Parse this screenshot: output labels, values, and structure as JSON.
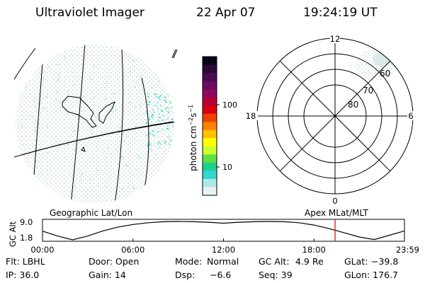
{
  "header": {
    "instrument": "Ultraviolet Imager",
    "date": "22 Apr 07",
    "time": "19:24:19 UT"
  },
  "colorbar": {
    "unit_label": "photon cm",
    "unit_sup1": "−2",
    "unit_mid": "s",
    "unit_sup2": "−1",
    "ticks": [
      "100",
      "10"
    ],
    "colors": [
      "#0a0418",
      "#2a0838",
      "#4a0a50",
      "#6a0a60",
      "#8a0a60",
      "#b80030",
      "#d80010",
      "#f04000",
      "#ff8000",
      "#ffc000",
      "#ffff00",
      "#c8ff30",
      "#60e040",
      "#20d090",
      "#30d8d0",
      "#b0e8e8",
      "#e8f4f4"
    ]
  },
  "geo_panel": {
    "label": "Geographic Lat/Lon"
  },
  "polar_panel": {
    "label": "Apex  MLat/MLT",
    "mlt_labels": [
      "12",
      "18",
      "6",
      "0"
    ],
    "mlat_labels": [
      "60",
      "70",
      "80"
    ]
  },
  "chart_data": {
    "type": "line",
    "ylabel": "GC Alt",
    "yticks": [
      "9.0",
      "1.8"
    ],
    "ylim": [
      1.8,
      9.0
    ],
    "xticks": [
      "00:00",
      "06:00",
      "12:00",
      "18:00",
      "23:59"
    ],
    "xlim_hours": [
      0,
      24
    ],
    "series": [
      {
        "values_hours": [
          0,
          1,
          2,
          3,
          4,
          5,
          6,
          7,
          8,
          9,
          10,
          11,
          12,
          13,
          14,
          15,
          16,
          17,
          18,
          19,
          20,
          21,
          22,
          23,
          24
        ],
        "values_re": [
          5.2,
          3.3,
          1.8,
          3.3,
          5.3,
          6.8,
          7.8,
          8.5,
          8.9,
          9.0,
          8.9,
          8.7,
          8.3,
          8.7,
          8.9,
          9.0,
          8.9,
          8.5,
          7.6,
          6.2,
          4.6,
          2.9,
          1.9,
          3.6,
          5.3
        ]
      }
    ],
    "marker_hour": 19.4,
    "marker_color": "#dd0000"
  },
  "info": {
    "row1": [
      {
        "key": "flt",
        "text": "Flt: LBHL"
      },
      {
        "key": "door",
        "text": "Door: Open"
      },
      {
        "key": "mode",
        "text": "Mode:"
      },
      {
        "key": "mode_val",
        "text": "Normal"
      },
      {
        "key": "gcalt",
        "text": "GC Alt:"
      },
      {
        "key": "gcalt_val",
        "text": "4.9 Re"
      },
      {
        "key": "glat",
        "text": "GLat:"
      },
      {
        "key": "glat_val",
        "text": "−39.8"
      }
    ],
    "row2": [
      {
        "key": "ip",
        "text": "IP: 36.0"
      },
      {
        "key": "gain",
        "text": "Gain: 14"
      },
      {
        "key": "dsp",
        "text": "Dsp:"
      },
      {
        "key": "dsp_val",
        "text": "−6.6"
      },
      {
        "key": "seq",
        "text": "Seq: 39"
      },
      {
        "key": "glon",
        "text": "GLon: 176.7"
      }
    ]
  }
}
